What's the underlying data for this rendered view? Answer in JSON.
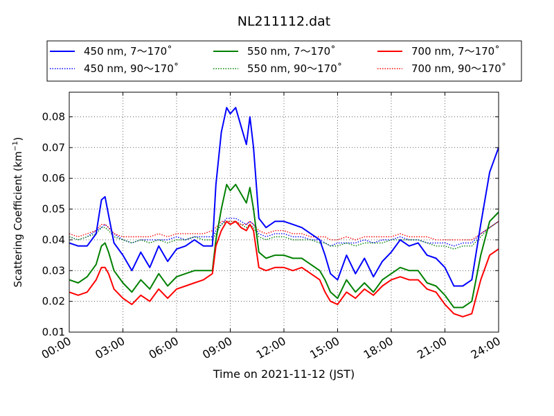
{
  "chart_data": {
    "type": "line",
    "title": "NL211112.dat",
    "xlabel": "Time on 2021-11-12 (JST)",
    "ylabel_main": "Scattering Coefficient (km",
    "ylabel_sup": "−1",
    "ylabel_close": ")",
    "xlim": [
      0,
      24
    ],
    "ylim": [
      0.01,
      0.088
    ],
    "grid": true,
    "legend_position": "top",
    "x_ticks": [
      0,
      3,
      6,
      9,
      12,
      15,
      18,
      21,
      24
    ],
    "x_tick_labels": [
      "00:00",
      "03:00",
      "06:00",
      "09:00",
      "12:00",
      "15:00",
      "18:00",
      "21:00",
      "24:00"
    ],
    "y_ticks": [
      0.01,
      0.02,
      0.03,
      0.04,
      0.05,
      0.06,
      0.07,
      0.08
    ],
    "y_tick_labels": [
      "0.01",
      "0.02",
      "0.03",
      "0.04",
      "0.05",
      "0.06",
      "0.07",
      "0.08"
    ],
    "x": [
      0,
      0.5,
      1,
      1.5,
      1.8,
      2,
      2.2,
      2.5,
      3,
      3.5,
      4,
      4.5,
      5,
      5.5,
      6,
      6.5,
      7,
      7.5,
      8,
      8.2,
      8.5,
      8.8,
      9,
      9.3,
      9.6,
      9.9,
      10.1,
      10.3,
      10.6,
      11,
      11.5,
      12,
      12.5,
      13,
      13.5,
      14,
      14.3,
      14.6,
      15,
      15.5,
      16,
      16.5,
      17,
      17.5,
      18,
      18.5,
      19,
      19.5,
      20,
      20.5,
      21,
      21.5,
      22,
      22.5,
      23,
      23.5,
      24
    ],
    "series": [
      {
        "name": "450 nm, 7～170˚",
        "color": "#0000ff",
        "style": "solid",
        "values": [
          0.039,
          0.038,
          0.038,
          0.042,
          0.053,
          0.054,
          0.048,
          0.039,
          0.035,
          0.03,
          0.036,
          0.031,
          0.038,
          0.033,
          0.037,
          0.038,
          0.04,
          0.038,
          0.038,
          0.058,
          0.075,
          0.083,
          0.081,
          0.083,
          0.077,
          0.071,
          0.08,
          0.07,
          0.047,
          0.044,
          0.046,
          0.046,
          0.045,
          0.044,
          0.042,
          0.04,
          0.035,
          0.029,
          0.027,
          0.035,
          0.029,
          0.034,
          0.028,
          0.033,
          0.036,
          0.04,
          0.038,
          0.039,
          0.035,
          0.034,
          0.031,
          0.025,
          0.025,
          0.027,
          0.045,
          0.062,
          0.07
        ]
      },
      {
        "name": "450 nm, 90～170˚",
        "color": "#0000ff",
        "style": "dotted",
        "values": [
          0.041,
          0.04,
          0.041,
          0.043,
          0.044,
          0.045,
          0.044,
          0.042,
          0.04,
          0.039,
          0.04,
          0.04,
          0.04,
          0.04,
          0.041,
          0.04,
          0.041,
          0.041,
          0.041,
          0.043,
          0.045,
          0.047,
          0.047,
          0.047,
          0.046,
          0.045,
          0.046,
          0.045,
          0.042,
          0.041,
          0.042,
          0.042,
          0.041,
          0.041,
          0.04,
          0.04,
          0.039,
          0.038,
          0.039,
          0.039,
          0.039,
          0.04,
          0.039,
          0.04,
          0.04,
          0.041,
          0.04,
          0.04,
          0.039,
          0.039,
          0.039,
          0.038,
          0.039,
          0.039,
          0.042,
          0.044,
          0.046
        ]
      },
      {
        "name": "550 nm, 7～170˚",
        "color": "#008000",
        "style": "solid",
        "values": [
          0.027,
          0.026,
          0.028,
          0.032,
          0.038,
          0.039,
          0.036,
          0.03,
          0.026,
          0.023,
          0.027,
          0.024,
          0.029,
          0.025,
          0.028,
          0.029,
          0.03,
          0.03,
          0.03,
          0.04,
          0.05,
          0.058,
          0.056,
          0.058,
          0.055,
          0.052,
          0.057,
          0.05,
          0.036,
          0.034,
          0.035,
          0.035,
          0.034,
          0.034,
          0.032,
          0.03,
          0.027,
          0.023,
          0.021,
          0.027,
          0.023,
          0.026,
          0.023,
          0.027,
          0.029,
          0.031,
          0.03,
          0.03,
          0.026,
          0.025,
          0.022,
          0.018,
          0.018,
          0.02,
          0.035,
          0.046,
          0.049
        ]
      },
      {
        "name": "550 nm, 90～170˚",
        "color": "#008000",
        "style": "dotted",
        "values": [
          0.041,
          0.04,
          0.041,
          0.042,
          0.044,
          0.044,
          0.043,
          0.041,
          0.04,
          0.039,
          0.04,
          0.039,
          0.04,
          0.039,
          0.04,
          0.04,
          0.041,
          0.04,
          0.04,
          0.042,
          0.045,
          0.046,
          0.046,
          0.046,
          0.045,
          0.044,
          0.045,
          0.044,
          0.041,
          0.04,
          0.041,
          0.041,
          0.04,
          0.04,
          0.04,
          0.039,
          0.039,
          0.038,
          0.038,
          0.039,
          0.038,
          0.039,
          0.039,
          0.039,
          0.04,
          0.04,
          0.04,
          0.04,
          0.039,
          0.038,
          0.038,
          0.037,
          0.038,
          0.038,
          0.041,
          0.044,
          0.046
        ]
      },
      {
        "name": "700 nm, 7～170˚",
        "color": "#ff0000",
        "style": "solid",
        "values": [
          0.023,
          0.022,
          0.023,
          0.027,
          0.031,
          0.031,
          0.029,
          0.024,
          0.021,
          0.019,
          0.022,
          0.02,
          0.024,
          0.021,
          0.024,
          0.025,
          0.026,
          0.027,
          0.029,
          0.038,
          0.043,
          0.046,
          0.045,
          0.046,
          0.044,
          0.043,
          0.045,
          0.043,
          0.031,
          0.03,
          0.031,
          0.031,
          0.03,
          0.031,
          0.029,
          0.027,
          0.023,
          0.02,
          0.019,
          0.023,
          0.021,
          0.024,
          0.022,
          0.025,
          0.027,
          0.028,
          0.027,
          0.027,
          0.024,
          0.023,
          0.019,
          0.016,
          0.015,
          0.016,
          0.027,
          0.035,
          0.037
        ]
      },
      {
        "name": "700 nm, 90～170˚",
        "color": "#ff0000",
        "style": "dotted",
        "values": [
          0.042,
          0.041,
          0.042,
          0.043,
          0.045,
          0.045,
          0.044,
          0.042,
          0.041,
          0.041,
          0.041,
          0.041,
          0.042,
          0.041,
          0.042,
          0.042,
          0.042,
          0.042,
          0.043,
          0.044,
          0.046,
          0.046,
          0.046,
          0.046,
          0.045,
          0.045,
          0.046,
          0.045,
          0.043,
          0.042,
          0.043,
          0.043,
          0.042,
          0.042,
          0.041,
          0.041,
          0.041,
          0.04,
          0.04,
          0.041,
          0.04,
          0.041,
          0.041,
          0.041,
          0.041,
          0.042,
          0.041,
          0.041,
          0.041,
          0.04,
          0.04,
          0.04,
          0.04,
          0.04,
          0.042,
          0.044,
          0.046
        ]
      }
    ]
  }
}
